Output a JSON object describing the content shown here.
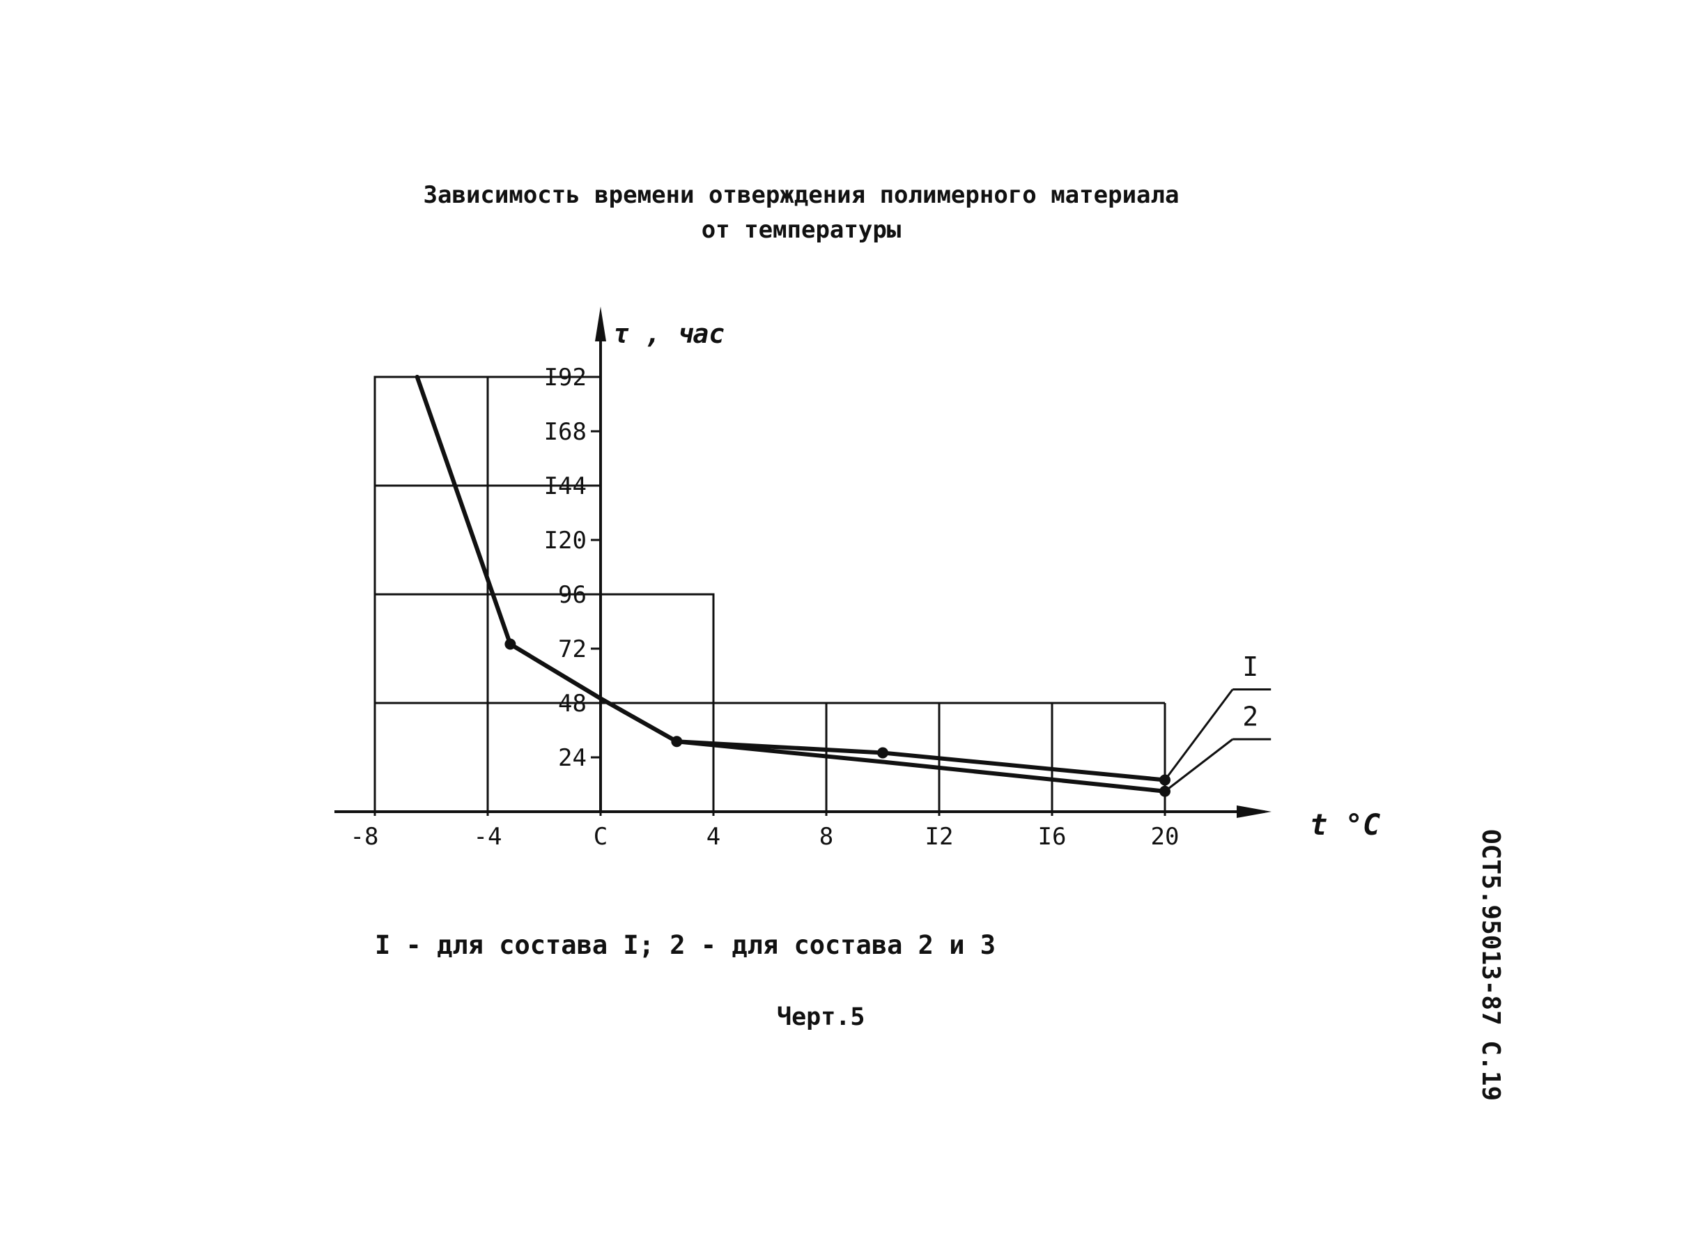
{
  "document": {
    "title_line1": "Зависимость времени отверждения полимерного материала",
    "title_line2": "от температуры",
    "legend_caption": "I - для состава I; 2 - для состава 2 и 3",
    "figure_label": "Черт.5",
    "side_code": "ОСТ5.95013-87   С.19"
  },
  "chart_data": {
    "type": "line",
    "xlabel": "t °C",
    "ylabel": "τ , час",
    "xlim": [
      -8,
      24
    ],
    "ylim": [
      0,
      200
    ],
    "x_ticks": [
      "-8",
      "-4",
      "C",
      "4",
      "8",
      "I2",
      "I6",
      "20"
    ],
    "x_tick_values": [
      -8,
      -4,
      0,
      4,
      8,
      12,
      16,
      20
    ],
    "y_ticks": [
      "24",
      "48",
      "72",
      "96",
      "I20",
      "I44",
      "I68",
      "I92"
    ],
    "y_tick_values": [
      24,
      48,
      72,
      96,
      120,
      144,
      168,
      192
    ],
    "grid_rects": [
      {
        "x": [
          -8,
          -4
        ],
        "y": [
          0,
          192
        ]
      },
      {
        "x": [
          -4,
          0
        ],
        "y": [
          0,
          192
        ]
      },
      {
        "x": [
          -8,
          0
        ],
        "y": [
          144,
          144
        ]
      },
      {
        "x": [
          -8,
          4
        ],
        "y": [
          96,
          96
        ]
      },
      {
        "x": [
          0,
          4
        ],
        "y": [
          0,
          96
        ]
      },
      {
        "x": [
          -8,
          20
        ],
        "y": [
          48,
          48
        ]
      },
      {
        "x": [
          8,
          8
        ],
        "y": [
          0,
          48
        ]
      },
      {
        "x": [
          12,
          12
        ],
        "y": [
          0,
          48
        ]
      },
      {
        "x": [
          16,
          16
        ],
        "y": [
          0,
          48
        ]
      },
      {
        "x": [
          20,
          20
        ],
        "y": [
          0,
          48
        ]
      }
    ],
    "series": [
      {
        "name": "I",
        "x": [
          -6.5,
          -3.2,
          0,
          2.7,
          10,
          20
        ],
        "y": [
          192,
          74,
          50,
          31,
          26,
          14
        ]
      },
      {
        "name": "2",
        "x": [
          -6.5,
          -3.2,
          0,
          2.7,
          10,
          20
        ],
        "y": [
          192,
          74,
          50,
          31,
          22,
          9
        ]
      }
    ],
    "series_labels": [
      {
        "name": "I",
        "x": 22.5,
        "y": 60
      },
      {
        "name": "2",
        "x": 22.5,
        "y": 38
      }
    ],
    "leader_lines": [
      {
        "from": [
          20,
          14
        ],
        "to": [
          22.4,
          54
        ]
      },
      {
        "from": [
          20,
          9
        ],
        "to": [
          22.4,
          32
        ]
      }
    ],
    "markers": [
      {
        "x": -3.2,
        "y": 74
      },
      {
        "x": 2.7,
        "y": 31
      },
      {
        "x": 10,
        "y": 26
      },
      {
        "x": 20,
        "y": 14
      },
      {
        "x": 20,
        "y": 9
      }
    ],
    "legend_position": "right",
    "grid": true
  }
}
